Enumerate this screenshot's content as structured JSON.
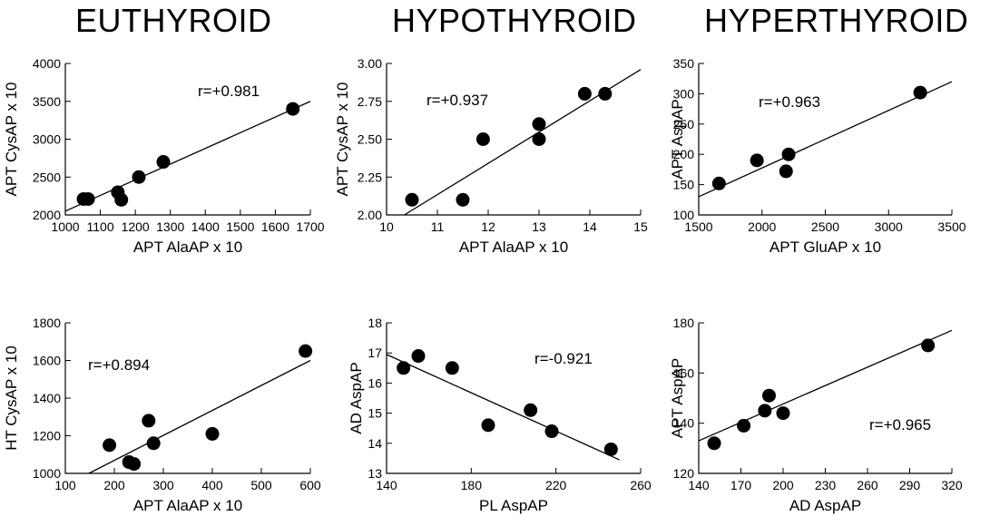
{
  "column_titles": [
    "EUTHYROID",
    "HYPOTHYROID",
    "HYPERTHYROID"
  ],
  "chart_data": [
    {
      "type": "scatter",
      "group": "EUTHYROID",
      "xlabel": "APT AlaAP x 10",
      "ylabel": "APT CysAP x 10",
      "xlim": [
        1000,
        1700
      ],
      "ylim": [
        2000,
        4000
      ],
      "xticks": [
        1000,
        1100,
        1200,
        1300,
        1400,
        1500,
        1600,
        1700
      ],
      "yticks": [
        2000,
        2500,
        3000,
        3500,
        4000
      ],
      "points": [
        [
          1052,
          2210
        ],
        [
          1065,
          2210
        ],
        [
          1150,
          2300
        ],
        [
          1160,
          2200
        ],
        [
          1210,
          2500
        ],
        [
          1280,
          2700
        ],
        [
          1650,
          3400
        ]
      ],
      "fit_line": [
        [
          1000,
          2050
        ],
        [
          1700,
          3500
        ]
      ],
      "r_text": "r=+0.981"
    },
    {
      "type": "scatter",
      "group": "HYPOTHYROID",
      "xlabel": "APT AlaAP x 10",
      "ylabel": "APT CysAP x 10",
      "xlim": [
        10,
        15
      ],
      "ylim": [
        2.0,
        3.0
      ],
      "xticks": [
        10,
        11,
        12,
        13,
        14,
        15
      ],
      "yticks": [
        2.0,
        2.25,
        2.5,
        2.75,
        3.0
      ],
      "xtick_labels": [
        "10",
        "11",
        "12",
        "13",
        "14",
        "15"
      ],
      "ytick_labels": [
        "2.00",
        "2.25",
        "2.50",
        "2.75",
        "3.00"
      ],
      "points": [
        [
          10.5,
          2.1
        ],
        [
          11.5,
          2.1
        ],
        [
          11.9,
          2.5
        ],
        [
          13.0,
          2.6
        ],
        [
          13.0,
          2.5
        ],
        [
          13.9,
          2.8
        ],
        [
          14.3,
          2.8
        ]
      ],
      "fit_line": [
        [
          10.35,
          2.0
        ],
        [
          15.0,
          2.96
        ]
      ],
      "r_text": "r=+0.937"
    },
    {
      "type": "scatter",
      "group": "HYPERTHYROID",
      "xlabel": "APT GluAP x 10",
      "ylabel": "APT AspAP",
      "xlim": [
        1500,
        3500
      ],
      "ylim": [
        100,
        350
      ],
      "xticks": [
        1500,
        2000,
        2500,
        3000,
        3500
      ],
      "yticks": [
        100,
        150,
        200,
        250,
        300,
        350
      ],
      "points": [
        [
          1660,
          152
        ],
        [
          1960,
          190
        ],
        [
          2190,
          172
        ],
        [
          2210,
          200
        ],
        [
          3250,
          302
        ]
      ],
      "fit_line": [
        [
          1500,
          130
        ],
        [
          3500,
          320
        ]
      ],
      "r_text": "r=+0.963"
    },
    {
      "type": "scatter",
      "group": "EUTHYROID",
      "xlabel": "APT AlaAP  x 10",
      "ylabel": "HT CysAP x 10",
      "xlim": [
        100,
        600
      ],
      "ylim": [
        1000,
        1800
      ],
      "xticks": [
        100,
        200,
        300,
        400,
        500,
        600
      ],
      "yticks": [
        1000,
        1200,
        1400,
        1600,
        1800
      ],
      "points": [
        [
          190,
          1150
        ],
        [
          230,
          1060
        ],
        [
          240,
          1050
        ],
        [
          270,
          1280
        ],
        [
          280,
          1160
        ],
        [
          400,
          1210
        ],
        [
          590,
          1650
        ]
      ],
      "fit_line": [
        [
          148,
          1000
        ],
        [
          600,
          1600
        ]
      ],
      "r_text": "r=+0.894"
    },
    {
      "type": "scatter",
      "group": "HYPOTHYROID",
      "xlabel": "PL AspAP",
      "ylabel": "AD AspAP",
      "xlim": [
        140,
        260
      ],
      "ylim": [
        13,
        18
      ],
      "xticks": [
        140,
        180,
        220,
        260
      ],
      "yticks": [
        13,
        14,
        15,
        16,
        17,
        18
      ],
      "points": [
        [
          148,
          16.5
        ],
        [
          155,
          16.9
        ],
        [
          171,
          16.5
        ],
        [
          188,
          14.6
        ],
        [
          208,
          15.1
        ],
        [
          218,
          14.4
        ],
        [
          246,
          13.8
        ]
      ],
      "fit_line": [
        [
          140,
          16.95
        ],
        [
          250,
          13.45
        ]
      ],
      "r_text": "r=-0.921"
    },
    {
      "type": "scatter",
      "group": "HYPERTHYROID",
      "xlabel": "AD AspAP",
      "ylabel": "APT AspAP",
      "xlim": [
        140,
        320
      ],
      "ylim": [
        120,
        180
      ],
      "xticks": [
        140,
        170,
        200,
        230,
        260,
        290,
        320
      ],
      "yticks": [
        120,
        140,
        160,
        180
      ],
      "points": [
        [
          151,
          132
        ],
        [
          172,
          139
        ],
        [
          187,
          145
        ],
        [
          190,
          151
        ],
        [
          200,
          144
        ],
        [
          303,
          171
        ]
      ],
      "fit_line": [
        [
          140,
          133
        ],
        [
          320,
          177
        ]
      ],
      "r_text": "r=+0.965"
    }
  ]
}
